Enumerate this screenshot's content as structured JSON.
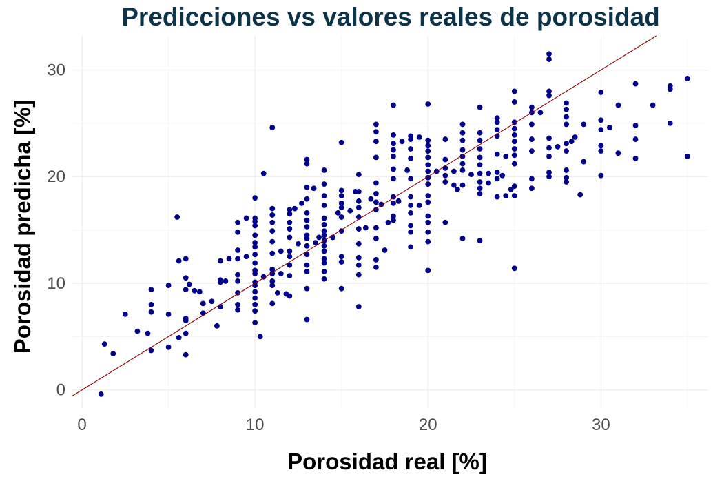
{
  "chart_data": {
    "type": "scatter",
    "title": "Predicciones vs valores reales de porosidad",
    "xlabel": "Porosidad real [%]",
    "ylabel": "Porosidad predicha [%]",
    "xlim": [
      -0.6,
      36.2
    ],
    "ylim": [
      -1.7,
      33.2
    ],
    "xticks": [
      0,
      10,
      20,
      30
    ],
    "yticks": [
      0,
      10,
      20,
      30
    ],
    "grid": true,
    "legend": "none",
    "point_color": "#00008b",
    "line_color": "#8b0000",
    "title_color": "#0d3349",
    "reference_line": {
      "slope": 1,
      "intercept": 0
    },
    "points": [
      [
        1.1,
        -0.4
      ],
      [
        1.3,
        4.3
      ],
      [
        1.8,
        3.4
      ],
      [
        2.5,
        7.1
      ],
      [
        3.2,
        5.5
      ],
      [
        3.8,
        5.3
      ],
      [
        4,
        3.7
      ],
      [
        4,
        7.3
      ],
      [
        4,
        8
      ],
      [
        4,
        9.4
      ],
      [
        5,
        4
      ],
      [
        5,
        7.1
      ],
      [
        5,
        9.8
      ],
      [
        5.5,
        16.2
      ],
      [
        5.6,
        4.9
      ],
      [
        5.6,
        12.1
      ],
      [
        6,
        3.3
      ],
      [
        6,
        5.3
      ],
      [
        6,
        6.5
      ],
      [
        6,
        6.7
      ],
      [
        6,
        9.4
      ],
      [
        6,
        10.5
      ],
      [
        6,
        12.3
      ],
      [
        6.2,
        9.9
      ],
      [
        6.5,
        9.3
      ],
      [
        6.8,
        9.2
      ],
      [
        7,
        7.2
      ],
      [
        7,
        8.1
      ],
      [
        7.5,
        8.3
      ],
      [
        7.8,
        6
      ],
      [
        8,
        7.8
      ],
      [
        8,
        10.1
      ],
      [
        8,
        10.3
      ],
      [
        8,
        12.1
      ],
      [
        8.3,
        10.2
      ],
      [
        8.5,
        12.3
      ],
      [
        9,
        7.5
      ],
      [
        9,
        8
      ],
      [
        9,
        9.1
      ],
      [
        9,
        10.2
      ],
      [
        9,
        10.8
      ],
      [
        9,
        12.3
      ],
      [
        9,
        13.1
      ],
      [
        9,
        14.8
      ],
      [
        9,
        15.7
      ],
      [
        9.5,
        12.5
      ],
      [
        9.5,
        16.1
      ],
      [
        10,
        6.3
      ],
      [
        10,
        7.4
      ],
      [
        10,
        8
      ],
      [
        10,
        8.6
      ],
      [
        10,
        9.2
      ],
      [
        10,
        9.8
      ],
      [
        10,
        10.1
      ],
      [
        10,
        10.9
      ],
      [
        10,
        11.2
      ],
      [
        10,
        11.9
      ],
      [
        10,
        12.7
      ],
      [
        10,
        13.4
      ],
      [
        10,
        13.8
      ],
      [
        10,
        14.5
      ],
      [
        10,
        15.4
      ],
      [
        10,
        15.8
      ],
      [
        10,
        16.1
      ],
      [
        10,
        18
      ],
      [
        10.3,
        5
      ],
      [
        10.5,
        10.6
      ],
      [
        10.5,
        20.3
      ],
      [
        11,
        8.1
      ],
      [
        11,
        9.8
      ],
      [
        11,
        10.2
      ],
      [
        11,
        10.9
      ],
      [
        11,
        11.3
      ],
      [
        11,
        12.8
      ],
      [
        11,
        13.9
      ],
      [
        11,
        14.9
      ],
      [
        11,
        15.7
      ],
      [
        11,
        16.4
      ],
      [
        11,
        17
      ],
      [
        11,
        24.6
      ],
      [
        11.3,
        9.1
      ],
      [
        11.5,
        10.9
      ],
      [
        11.5,
        13
      ],
      [
        11.8,
        9
      ],
      [
        12,
        8.8
      ],
      [
        12,
        10.7
      ],
      [
        12,
        11.7
      ],
      [
        12,
        12.5
      ],
      [
        12,
        13
      ],
      [
        12,
        14.3
      ],
      [
        12,
        15.1
      ],
      [
        12,
        15.7
      ],
      [
        12,
        16.5
      ],
      [
        12,
        16.9
      ],
      [
        12.3,
        17
      ],
      [
        12.5,
        13.7
      ],
      [
        12.7,
        17.5
      ],
      [
        13,
        6.6
      ],
      [
        13,
        9.5
      ],
      [
        13,
        11.1
      ],
      [
        13,
        11.7
      ],
      [
        13,
        12.7
      ],
      [
        13,
        13.5
      ],
      [
        13,
        14.2
      ],
      [
        13,
        14.5
      ],
      [
        13,
        15.3
      ],
      [
        13,
        15.9
      ],
      [
        13,
        16.6
      ],
      [
        13,
        17.9
      ],
      [
        13,
        19
      ],
      [
        13,
        21.2
      ],
      [
        13,
        21.6
      ],
      [
        13.4,
        18.9
      ],
      [
        13.5,
        13.8
      ],
      [
        13.7,
        14.3
      ],
      [
        14,
        10.4
      ],
      [
        14,
        11.1
      ],
      [
        14,
        11.9
      ],
      [
        14,
        12.3
      ],
      [
        14,
        13
      ],
      [
        14,
        13.5
      ],
      [
        14,
        14
      ],
      [
        14,
        14.5
      ],
      [
        14,
        14.9
      ],
      [
        14,
        15.5
      ],
      [
        14,
        16.1
      ],
      [
        14,
        17.3
      ],
      [
        14,
        18.2
      ],
      [
        14,
        19.3
      ],
      [
        14,
        20.6
      ],
      [
        14.5,
        14.3
      ],
      [
        14.8,
        16.6
      ],
      [
        15,
        9.5
      ],
      [
        15,
        12
      ],
      [
        15,
        12.5
      ],
      [
        15,
        14.9
      ],
      [
        15,
        16.2
      ],
      [
        15,
        17.1
      ],
      [
        15,
        17.5
      ],
      [
        15,
        18.2
      ],
      [
        15,
        18.7
      ],
      [
        15,
        23.2
      ],
      [
        15.5,
        16.8
      ],
      [
        15.8,
        18.6
      ],
      [
        16,
        7.8
      ],
      [
        16,
        10.8
      ],
      [
        16,
        11.7
      ],
      [
        16,
        12.4
      ],
      [
        16,
        13.7
      ],
      [
        16,
        15.1
      ],
      [
        16,
        16.2
      ],
      [
        16,
        17.1
      ],
      [
        16,
        17.7
      ],
      [
        16,
        18.6
      ],
      [
        16,
        20.2
      ],
      [
        16.4,
        15.2
      ],
      [
        16.7,
        17.9
      ],
      [
        17,
        11.5
      ],
      [
        17,
        12.2
      ],
      [
        17,
        14.2
      ],
      [
        17,
        15.2
      ],
      [
        17,
        16.9
      ],
      [
        17,
        17.6
      ],
      [
        17,
        18.4
      ],
      [
        17,
        19.4
      ],
      [
        17,
        21.8
      ],
      [
        17,
        23.3
      ],
      [
        17,
        24.2
      ],
      [
        17,
        24.9
      ],
      [
        17.3,
        17.4
      ],
      [
        17.5,
        13.1
      ],
      [
        17.7,
        15.7
      ],
      [
        18,
        15.9
      ],
      [
        18,
        16.3
      ],
      [
        18,
        17.5
      ],
      [
        18,
        18.1
      ],
      [
        18,
        19.8
      ],
      [
        18,
        20.7
      ],
      [
        18,
        21.9
      ],
      [
        18,
        22.5
      ],
      [
        18,
        23.1
      ],
      [
        18,
        23.9
      ],
      [
        18,
        26.7
      ],
      [
        18.3,
        17.7
      ],
      [
        18.5,
        23.3
      ],
      [
        18.8,
        20.6
      ],
      [
        19,
        13.4
      ],
      [
        19,
        14.8
      ],
      [
        19,
        15.4
      ],
      [
        19,
        16.6
      ],
      [
        19,
        17.3
      ],
      [
        19,
        18.1
      ],
      [
        19,
        19.8
      ],
      [
        19,
        21.7
      ],
      [
        19,
        22.6
      ],
      [
        19,
        23.5
      ],
      [
        19,
        23.8
      ],
      [
        19.5,
        17.3
      ],
      [
        19.5,
        23.7
      ],
      [
        20,
        11.2
      ],
      [
        20,
        13.9
      ],
      [
        20,
        14.8
      ],
      [
        20,
        15.7
      ],
      [
        20,
        16.3
      ],
      [
        20,
        17.6
      ],
      [
        20,
        18.2
      ],
      [
        20,
        19.3
      ],
      [
        20,
        19.9
      ],
      [
        20,
        20.5
      ],
      [
        20,
        21.1
      ],
      [
        20,
        21.8
      ],
      [
        20,
        22.4
      ],
      [
        20,
        22.9
      ],
      [
        20,
        23.4
      ],
      [
        20,
        26.8
      ],
      [
        20.5,
        20.5
      ],
      [
        21,
        15.7
      ],
      [
        21,
        19.5
      ],
      [
        21,
        20.1
      ],
      [
        21,
        20.8
      ],
      [
        21,
        21.6
      ],
      [
        21,
        23.5
      ],
      [
        21.5,
        20.5
      ],
      [
        21.5,
        19.2
      ],
      [
        21.7,
        18.8
      ],
      [
        22,
        14.2
      ],
      [
        22,
        19.2
      ],
      [
        22,
        20.6
      ],
      [
        22,
        21.2
      ],
      [
        22,
        21.9
      ],
      [
        22,
        22.5
      ],
      [
        22,
        23.4
      ],
      [
        22,
        24.1
      ],
      [
        22,
        24.9
      ],
      [
        22.5,
        20.2
      ],
      [
        23,
        14
      ],
      [
        23,
        18.4
      ],
      [
        23,
        18.9
      ],
      [
        23,
        19.5
      ],
      [
        23,
        20.3
      ],
      [
        23,
        21.1
      ],
      [
        23,
        21.8
      ],
      [
        23,
        22.6
      ],
      [
        23,
        23.4
      ],
      [
        23,
        24.1
      ],
      [
        23,
        26.5
      ],
      [
        23.5,
        19.4
      ],
      [
        23.5,
        20.3
      ],
      [
        24,
        18.1
      ],
      [
        24,
        19.8
      ],
      [
        24,
        20.4
      ],
      [
        24,
        22.1
      ],
      [
        24,
        23.8
      ],
      [
        24,
        24.4
      ],
      [
        24,
        25.1
      ],
      [
        24,
        25.5
      ],
      [
        24.3,
        20.1
      ],
      [
        24.5,
        18.2
      ],
      [
        24.5,
        21.9
      ],
      [
        24.8,
        18.8
      ],
      [
        25,
        11.4
      ],
      [
        25,
        18.2
      ],
      [
        25,
        19.1
      ],
      [
        25,
        21.2
      ],
      [
        25,
        22
      ],
      [
        25,
        22.6
      ],
      [
        25,
        23.3
      ],
      [
        25,
        23.9
      ],
      [
        25,
        24.5
      ],
      [
        25,
        25.1
      ],
      [
        25,
        27
      ],
      [
        25,
        28
      ],
      [
        26,
        18.9
      ],
      [
        26,
        19.8
      ],
      [
        26,
        22.4
      ],
      [
        26,
        23.5
      ],
      [
        26,
        24.9
      ],
      [
        26,
        26
      ],
      [
        26,
        26.5
      ],
      [
        26.5,
        26
      ],
      [
        27,
        20
      ],
      [
        27,
        20.4
      ],
      [
        27,
        21.9
      ],
      [
        27,
        22.7
      ],
      [
        27,
        23.6
      ],
      [
        27,
        27.6
      ],
      [
        27,
        28
      ],
      [
        27,
        31
      ],
      [
        27,
        31.5
      ],
      [
        27.5,
        22.8
      ],
      [
        28,
        19.5
      ],
      [
        28,
        19.9
      ],
      [
        28,
        20.6
      ],
      [
        28,
        22.4
      ],
      [
        28,
        23.1
      ],
      [
        28,
        24.9
      ],
      [
        28,
        25.6
      ],
      [
        28,
        26.3
      ],
      [
        28,
        26.9
      ],
      [
        28.3,
        23.3
      ],
      [
        28.5,
        23.7
      ],
      [
        28.8,
        18.3
      ],
      [
        29,
        21.4
      ],
      [
        29,
        24.9
      ],
      [
        30,
        20.1
      ],
      [
        30,
        22.4
      ],
      [
        30,
        22.9
      ],
      [
        30,
        24.4
      ],
      [
        30,
        25.3
      ],
      [
        30,
        27.9
      ],
      [
        30.5,
        24.6
      ],
      [
        31,
        22.2
      ],
      [
        31,
        26.7
      ],
      [
        32,
        21.7
      ],
      [
        32,
        23.5
      ],
      [
        32,
        24.8
      ],
      [
        32,
        28.7
      ],
      [
        33,
        26.7
      ],
      [
        34,
        25
      ],
      [
        34,
        28.2
      ],
      [
        34,
        28.5
      ],
      [
        35,
        21.9
      ],
      [
        35,
        29.2
      ]
    ]
  }
}
